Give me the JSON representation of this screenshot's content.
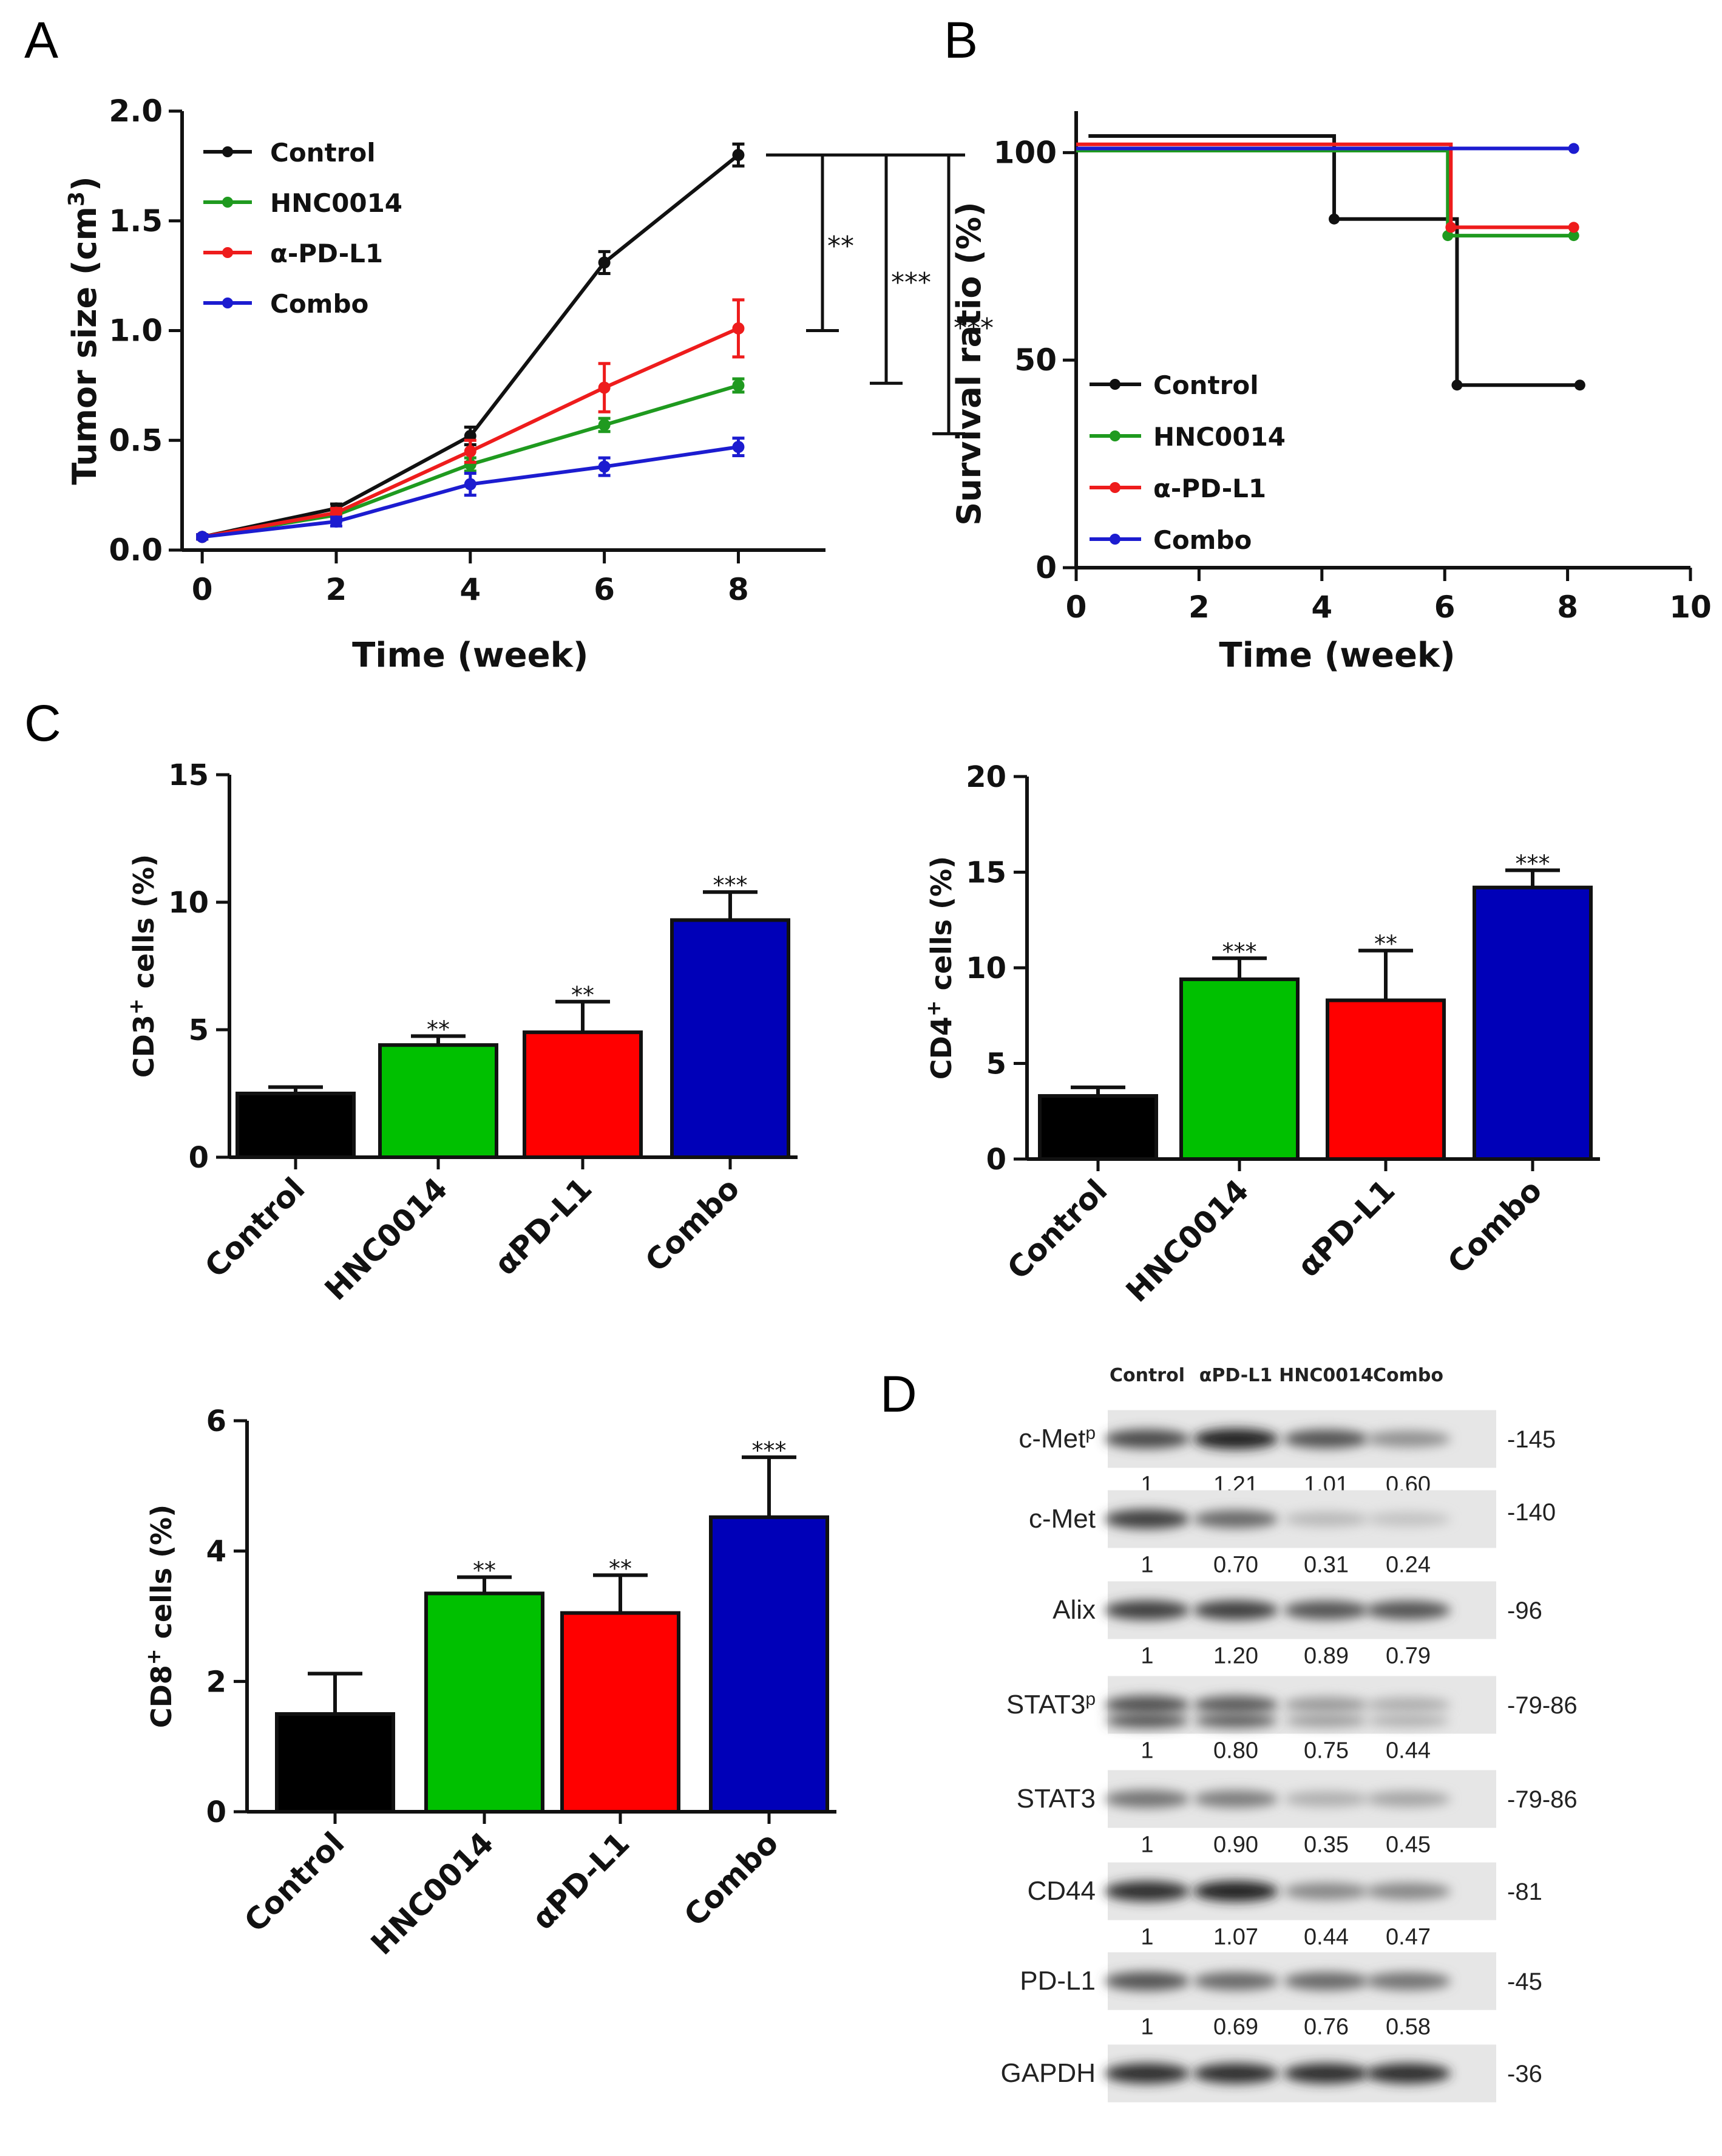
{
  "panel_letters": [
    "A",
    "B",
    "C",
    "D"
  ],
  "colors": {
    "Control": "#111111",
    "HNC0014": "#1f9a1f",
    "aPD": "#ee1c1c",
    "Combo": "#1c1cd0",
    "bar_green": "#00c000",
    "bar_red": "#ff0000",
    "bar_blue": "#0000b8",
    "bar_black": "#000000"
  },
  "chart_data": [
    {
      "id": "A",
      "type": "line",
      "title": "",
      "xlabel": "Time (week)",
      "ylabel": "Tumor size (cm3)",
      "ylabel_main": "Tumor size (cm",
      "ylabel_sup": "3",
      "ylabel_close": ")",
      "x": [
        0,
        2,
        4,
        6,
        8
      ],
      "xlim": [
        -0.3,
        9.3
      ],
      "ylim": [
        0,
        2.0
      ],
      "xticks": [
        0,
        2,
        4,
        6,
        8
      ],
      "yticks": [
        0.0,
        0.5,
        1.0,
        1.5,
        2.0
      ],
      "ytick_labels": [
        "0.0",
        "0.5",
        "1.0",
        "1.5",
        "2.0"
      ],
      "series": [
        {
          "name": "Control",
          "color": "#111111",
          "values": [
            0.06,
            0.19,
            0.52,
            1.31,
            1.8
          ],
          "errors": [
            0.01,
            0.02,
            0.04,
            0.05,
            0.05
          ]
        },
        {
          "name": "HNC0014",
          "color": "#1f9a1f",
          "values": [
            0.06,
            0.16,
            0.39,
            0.57,
            0.75
          ],
          "errors": [
            0.01,
            0.02,
            0.03,
            0.03,
            0.03
          ]
        },
        {
          "name": "α-PD-L1",
          "color": "#ee1c1c",
          "values": [
            0.06,
            0.17,
            0.45,
            0.74,
            1.01
          ],
          "errors": [
            0.01,
            0.02,
            0.05,
            0.11,
            0.13
          ]
        },
        {
          "name": "Combo",
          "color": "#1c1cd0",
          "values": [
            0.06,
            0.13,
            0.3,
            0.38,
            0.47
          ],
          "errors": [
            0.01,
            0.02,
            0.05,
            0.04,
            0.04
          ]
        }
      ],
      "significance": [
        {
          "label": "**",
          "from": 1.8,
          "to": 1.0
        },
        {
          "label": "***",
          "from": 1.8,
          "to": 0.76
        },
        {
          "label": "***",
          "from": 1.8,
          "to": 0.53
        }
      ]
    },
    {
      "id": "B",
      "type": "line",
      "subtype": "survival-step",
      "xlabel": "Time (week)",
      "ylabel": "Survival ratio (%)",
      "xlim": [
        0,
        10
      ],
      "ylim": [
        0,
        110
      ],
      "xticks": [
        0,
        2,
        4,
        6,
        8,
        10
      ],
      "yticks": [
        0,
        50,
        100
      ],
      "series": [
        {
          "name": "Control",
          "color": "#111111",
          "steps": [
            [
              0.2,
              104
            ],
            [
              4.2,
              104
            ],
            [
              4.2,
              84
            ],
            [
              6.2,
              84
            ],
            [
              6.2,
              44
            ],
            [
              8.2,
              44
            ]
          ],
          "markers": [
            [
              4.2,
              84
            ],
            [
              6.2,
              44
            ],
            [
              8.2,
              44
            ]
          ]
        },
        {
          "name": "HNC0014",
          "color": "#1f9a1f",
          "steps": [
            [
              0,
              100.5
            ],
            [
              6.05,
              100.5
            ],
            [
              6.05,
              80
            ],
            [
              8.1,
              80
            ]
          ],
          "markers": [
            [
              6.05,
              80
            ],
            [
              8.1,
              80
            ]
          ]
        },
        {
          "name": "α-PD-L1",
          "color": "#ee1c1c",
          "steps": [
            [
              0,
              102
            ],
            [
              6.1,
              102
            ],
            [
              6.1,
              82
            ],
            [
              8.1,
              82
            ]
          ],
          "markers": [
            [
              6.1,
              82
            ],
            [
              8.1,
              82
            ]
          ]
        },
        {
          "name": "Combo",
          "color": "#1c1cd0",
          "steps": [
            [
              0,
              101
            ],
            [
              8.1,
              101
            ]
          ],
          "markers": [
            [
              8.1,
              101
            ]
          ]
        }
      ]
    },
    {
      "id": "C-CD3",
      "type": "bar",
      "ylabel_main": "CD3",
      "ylabel_sup": "+",
      "ylabel_rest": " cells (%)",
      "ylim": [
        0,
        15
      ],
      "yticks": [
        0,
        5,
        10,
        15
      ],
      "categories": [
        "Control",
        "HNC0014",
        "αPD-L1",
        "Combo"
      ],
      "values": [
        2.5,
        4.4,
        4.9,
        9.3
      ],
      "errors": [
        0.25,
        0.35,
        1.2,
        1.1
      ],
      "sig": [
        "",
        "**",
        "**",
        "***"
      ],
      "colors": [
        "#000000",
        "#00c000",
        "#ff0000",
        "#0000b8"
      ]
    },
    {
      "id": "C-CD4",
      "type": "bar",
      "ylabel_main": "CD4",
      "ylabel_sup": "+",
      "ylabel_rest": " cells (%)",
      "ylim": [
        0,
        20
      ],
      "yticks": [
        0,
        5,
        10,
        15,
        20
      ],
      "categories": [
        "Control",
        "HNC0014",
        "αPD-L1",
        "Combo"
      ],
      "values": [
        3.3,
        9.4,
        8.3,
        14.2
      ],
      "errors": [
        0.45,
        1.1,
        2.6,
        0.9
      ],
      "sig": [
        "",
        "***",
        "**",
        "***"
      ],
      "colors": [
        "#000000",
        "#00c000",
        "#ff0000",
        "#0000b8"
      ]
    },
    {
      "id": "C-CD8",
      "type": "bar",
      "ylabel_main": "CD8",
      "ylabel_sup": "+",
      "ylabel_rest": " cells (%)",
      "ylim": [
        0,
        6
      ],
      "yticks": [
        0,
        2,
        4,
        6
      ],
      "categories": [
        "Control",
        "HNC0014",
        "αPD-L1",
        "Combo"
      ],
      "values": [
        1.5,
        3.35,
        3.05,
        4.52
      ],
      "errors": [
        0.62,
        0.25,
        0.58,
        0.92
      ],
      "sig": [
        "",
        "**",
        "**",
        "***"
      ],
      "colors": [
        "#000000",
        "#00c000",
        "#ff0000",
        "#0000b8"
      ]
    }
  ],
  "western_blot": {
    "lanes": [
      "Control",
      "αPD-L1",
      "HNC0014",
      "Combo"
    ],
    "rows": [
      {
        "label": "c-Met",
        "sup": "p",
        "kda": "-145",
        "values": [
          "1",
          "1.21",
          "1.01",
          "0.60"
        ],
        "intensity": [
          0.8,
          1.0,
          0.75,
          0.45
        ]
      },
      {
        "label": "c-Met",
        "sup": "",
        "kda": "-140",
        "values": [
          "1",
          "0.70",
          "0.31",
          "0.24"
        ],
        "intensity": [
          0.85,
          0.65,
          0.25,
          0.2
        ]
      },
      {
        "label": "Alix",
        "sup": "",
        "kda": "-96",
        "values": [
          "1",
          "1.20",
          "0.89",
          "0.79"
        ],
        "intensity": [
          0.85,
          0.85,
          0.75,
          0.75
        ]
      },
      {
        "label": "STAT3",
        "sup": "p",
        "kda": "-79-86",
        "values": [
          "1",
          "0.80",
          "0.75",
          "0.44"
        ],
        "intensity": [
          0.75,
          0.7,
          0.4,
          0.3
        ]
      },
      {
        "label": "STAT3",
        "sup": "",
        "kda": "-79-86",
        "values": [
          "1",
          "0.90",
          "0.35",
          "0.45"
        ],
        "intensity": [
          0.6,
          0.55,
          0.3,
          0.35
        ]
      },
      {
        "label": "CD44",
        "sup": "",
        "kda": "-81",
        "values": [
          "1",
          "1.07",
          "0.44",
          "0.47"
        ],
        "intensity": [
          0.95,
          1.0,
          0.5,
          0.5
        ]
      },
      {
        "label": "PD-L1",
        "sup": "",
        "kda": "-45",
        "values": [
          "1",
          "0.69",
          "0.76",
          "0.58"
        ],
        "intensity": [
          0.75,
          0.65,
          0.65,
          0.6
        ]
      },
      {
        "label": "GAPDH",
        "sup": "",
        "kda": "-36",
        "values": [],
        "intensity": [
          0.95,
          0.95,
          0.95,
          0.95
        ]
      }
    ]
  }
}
